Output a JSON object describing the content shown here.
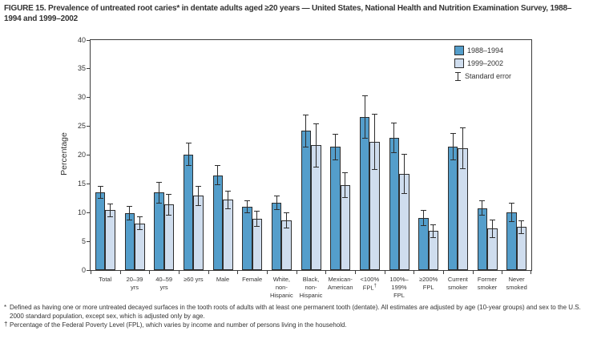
{
  "figure": {
    "title": "FIGURE 15. Prevalence of untreated root caries* in dentate adults aged ≥20 years — United States, National Health and Nutrition Examination Survey, 1988–1994 and 1999–2002"
  },
  "chart_data": {
    "type": "bar",
    "title": "Prevalence of untreated root caries in dentate adults aged ≥20 years, NHANES 1988–1994 and 1999–2002",
    "ylabel": "Percentage",
    "xlabel": "",
    "ylim": [
      0,
      40
    ],
    "yticks": [
      0,
      5,
      10,
      15,
      20,
      25,
      30,
      35,
      40
    ],
    "grid": false,
    "legend_position": "top-right-inside",
    "error_label": "Standard error",
    "categories": [
      "Total",
      "20–39\nyrs",
      "40–59\nyrs",
      "≥60 yrs",
      "Male",
      "Female",
      "White,\nnon-\nHispanic",
      "Black,\nnon-\nHispanic",
      "Mexican-\nAmerican",
      "<100%\nFPL†",
      "100%–\n199%\nFPL",
      "≥200%\nFPL",
      "Current\nsmoker",
      "Former\nsmoker",
      "Never\nsmoked"
    ],
    "series": [
      {
        "name": "1988–1994",
        "color": "#549ecb",
        "values": [
          13.5,
          9.9,
          13.5,
          20.1,
          16.5,
          11.0,
          11.7,
          24.2,
          21.4,
          26.6,
          23.0,
          9.0,
          21.5,
          10.8,
          10.0
        ],
        "stderr": [
          1.1,
          1.3,
          1.9,
          2.0,
          1.7,
          1.1,
          1.2,
          2.9,
          2.3,
          3.8,
          2.6,
          1.4,
          2.4,
          1.3,
          1.7
        ]
      },
      {
        "name": "1999–2002",
        "color": "#cfddee",
        "values": [
          10.4,
          8.1,
          11.4,
          12.9,
          12.2,
          8.9,
          8.7,
          21.7,
          14.8,
          22.3,
          16.7,
          6.8,
          21.2,
          7.2,
          7.5
        ],
        "stderr": [
          1.2,
          1.2,
          1.9,
          1.8,
          1.6,
          1.4,
          1.4,
          3.8,
          2.2,
          4.9,
          3.5,
          1.2,
          3.6,
          1.6,
          1.2
        ]
      }
    ]
  },
  "footnotes": [
    {
      "marker": "*",
      "text": "Defined as having one or more untreated decayed surfaces in the tooth roots of adults with at least one permanent tooth (dentate). All estimates are adjusted by age (10-year groups) and sex to the U.S. 2000 standard population, except sex, which is adjusted only by age."
    },
    {
      "marker": "†",
      "text": "Percentage of the Federal Poverty Level (FPL), which varies by income and number of persons living in the household."
    }
  ]
}
